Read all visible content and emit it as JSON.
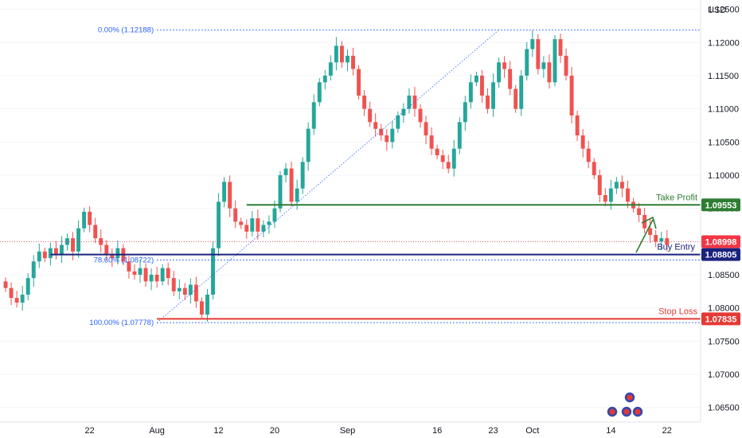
{
  "currency_label": "USD",
  "chart_data": {
    "type": "candlestick",
    "instrument_quote": "USD",
    "ylim": [
      1.0628,
      1.1264
    ],
    "y_ticks": [
      "1.12500",
      "1.12000",
      "1.11500",
      "1.11000",
      "1.10500",
      "1.10000",
      "1.09500",
      "1.09000",
      "1.08500",
      "1.08000",
      "1.07500",
      "1.07000",
      "1.06500"
    ],
    "y_tick_values": [
      1.125,
      1.12,
      1.115,
      1.11,
      1.105,
      1.1,
      1.095,
      1.09,
      1.085,
      1.08,
      1.075,
      1.07,
      1.065
    ],
    "x_labels": [
      {
        "label": "22",
        "bar": 15
      },
      {
        "label": "Aug",
        "bar": 27
      },
      {
        "label": "12",
        "bar": 38
      },
      {
        "label": "20",
        "bar": 48
      },
      {
        "label": "Sep",
        "bar": 61
      },
      {
        "label": "16",
        "bar": 77
      },
      {
        "label": "23",
        "bar": 87
      },
      {
        "label": "Oct",
        "bar": 94
      },
      {
        "label": "14",
        "bar": 108
      },
      {
        "label": "22",
        "bar": 118
      }
    ],
    "bar_count_span": [
      -1,
      124
    ],
    "colors": {
      "up": "#26a69a",
      "down": "#ef5350",
      "take_profit": "#2e7d32",
      "buy_entry": "#1a237e",
      "stop_loss": "#e53935",
      "fib": "#2962ff",
      "current": "#f23645"
    },
    "ohlc_path": [
      1.083,
      1.0815,
      1.0808,
      1.082,
      1.0845,
      1.087,
      1.0885,
      1.0875,
      1.089,
      1.088,
      1.0895,
      1.0905,
      1.0885,
      1.092,
      1.0945,
      1.0925,
      1.0905,
      1.0895,
      1.088,
      1.0875,
      1.089,
      1.087,
      1.0855,
      1.085,
      1.086,
      1.084,
      1.085,
      1.084,
      1.086,
      1.0845,
      1.0825,
      1.083,
      1.082,
      1.0835,
      1.081,
      1.079,
      1.082,
      1.089,
      1.096,
      1.099,
      1.095,
      1.093,
      1.0925,
      1.0915,
      1.0935,
      1.0915,
      1.0925,
      1.093,
      1.095,
      1.1,
      1.101,
      1.096,
      1.098,
      1.102,
      1.107,
      1.111,
      1.114,
      1.115,
      1.117,
      1.1195,
      1.117,
      1.118,
      1.116,
      1.112,
      1.11,
      1.108,
      1.107,
      1.106,
      1.105,
      1.107,
      1.109,
      1.11,
      1.112,
      1.11,
      1.108,
      1.106,
      1.104,
      1.103,
      1.102,
      1.101,
      1.104,
      1.108,
      1.111,
      1.114,
      1.115,
      1.112,
      1.11,
      1.114,
      1.117,
      1.116,
      1.113,
      1.11,
      1.115,
      1.119,
      1.1205,
      1.116,
      1.117,
      1.114,
      1.1205,
      1.118,
      1.115,
      1.109,
      1.106,
      1.104,
      1.102,
      1.1,
      1.097,
      1.096,
      1.098,
      1.099,
      1.098,
      1.096,
      1.095,
      1.094,
      1.092,
      1.091,
      1.09,
      1.0905,
      1.0895
    ],
    "levels": {
      "take_profit": {
        "label": "Take Profit",
        "value": "1.09553",
        "y": 1.09553
      },
      "buy_entry": {
        "label": "Buy Entry",
        "value": "1.08805",
        "y": 1.08805
      },
      "stop_loss": {
        "label": "Stop Loss",
        "value": "1.07835",
        "y": 1.07835
      },
      "current": {
        "value": "1.08998",
        "y": 1.08998
      }
    },
    "fib": {
      "high": {
        "label": "0.00% (1.12188)",
        "y": 1.12188
      },
      "mid": {
        "label": "78.60% (1.08722)",
        "y": 1.08722
      },
      "low": {
        "label": "100.00% (1.07778)",
        "y": 1.07778
      }
    }
  }
}
